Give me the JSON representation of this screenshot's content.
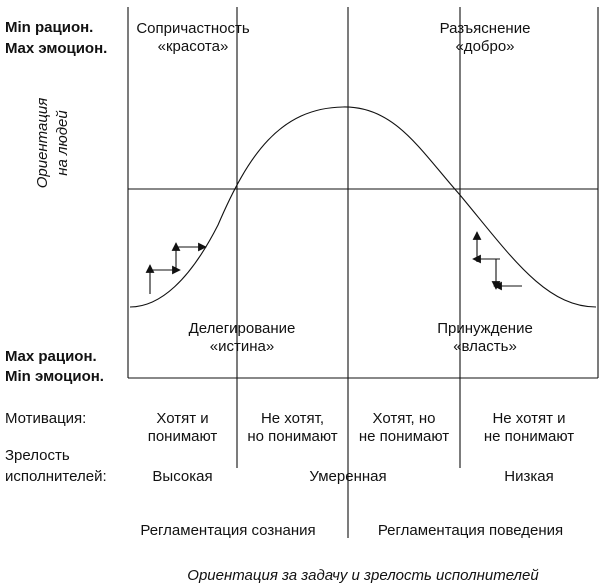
{
  "left_labels": {
    "top_line1": "Min рацион.",
    "top_line2": "Max эмоцион.",
    "bottom_line1": "Max рацион.",
    "bottom_line2": "Min эмоцион."
  },
  "y_axis_label_line1": "Ориентация",
  "y_axis_label_line2": "на людей",
  "x_axis_label": "Ориентация за задачу и зрелость исполнителей",
  "quadrants": {
    "top_left": {
      "line1": "Сопричастность",
      "line2": "«красота»"
    },
    "top_right": {
      "line1": "Разъяснение",
      "line2": "«добро»"
    },
    "bottom_left": {
      "line1": "Делегирование",
      "line2": "«истина»"
    },
    "bottom_right": {
      "line1": "Принуждение",
      "line2": "«власть»"
    }
  },
  "motivation": {
    "label": "Мотивация:",
    "cells": [
      {
        "line1": "Хотят и",
        "line2": "понимают"
      },
      {
        "line1": "Не хотят,",
        "line2": "но понимают"
      },
      {
        "line1": "Хотят, но",
        "line2": "не понимают"
      },
      {
        "line1": "Не хотят и",
        "line2": "не понимают"
      }
    ]
  },
  "maturity": {
    "label_line1": "Зрелость",
    "label_line2": "исполнителей:",
    "high": "Высокая",
    "moderate": "Умеренная",
    "low": "Низкая"
  },
  "regulation": {
    "consciousness": "Регламентация  сознания",
    "behavior": "Регламентация поведения"
  }
}
